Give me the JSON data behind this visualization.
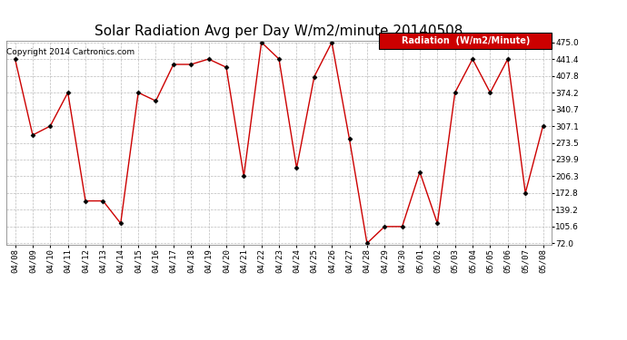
{
  "title": "Solar Radiation Avg per Day W/m2/minute 20140508",
  "copyright": "Copyright 2014 Cartronics.com",
  "legend_label": "Radiation  (W/m2/Minute)",
  "background_color": "#ffffff",
  "plot_bg_color": "#ffffff",
  "grid_color": "#bbbbbb",
  "line_color": "#cc0000",
  "marker_color": "#000000",
  "legend_bg": "#cc0000",
  "legend_fg": "#ffffff",
  "dates": [
    "04/08",
    "04/09",
    "04/10",
    "04/11",
    "04/12",
    "04/13",
    "04/14",
    "04/15",
    "04/16",
    "04/17",
    "04/18",
    "04/19",
    "04/20",
    "04/21",
    "04/22",
    "04/23",
    "04/24",
    "04/25",
    "04/26",
    "04/27",
    "04/28",
    "04/29",
    "04/30",
    "05/01",
    "05/02",
    "05/03",
    "05/04",
    "05/05",
    "05/06",
    "05/07",
    "05/08"
  ],
  "values": [
    441.4,
    289.0,
    307.1,
    374.2,
    157.0,
    157.0,
    112.0,
    374.2,
    357.5,
    430.7,
    430.7,
    441.4,
    424.9,
    206.3,
    475.0,
    441.4,
    222.8,
    406.0,
    475.0,
    281.0,
    72.0,
    105.6,
    105.6,
    215.0,
    112.0,
    374.2,
    441.4,
    374.2,
    441.4,
    172.8,
    307.1
  ],
  "ylim": [
    72.0,
    475.0
  ],
  "yticks": [
    72.0,
    105.6,
    139.2,
    172.8,
    206.3,
    239.9,
    273.5,
    307.1,
    340.7,
    374.2,
    407.8,
    441.4,
    475.0
  ],
  "title_fontsize": 11,
  "tick_fontsize": 6.5,
  "copyright_fontsize": 6.5,
  "legend_fontsize": 7
}
